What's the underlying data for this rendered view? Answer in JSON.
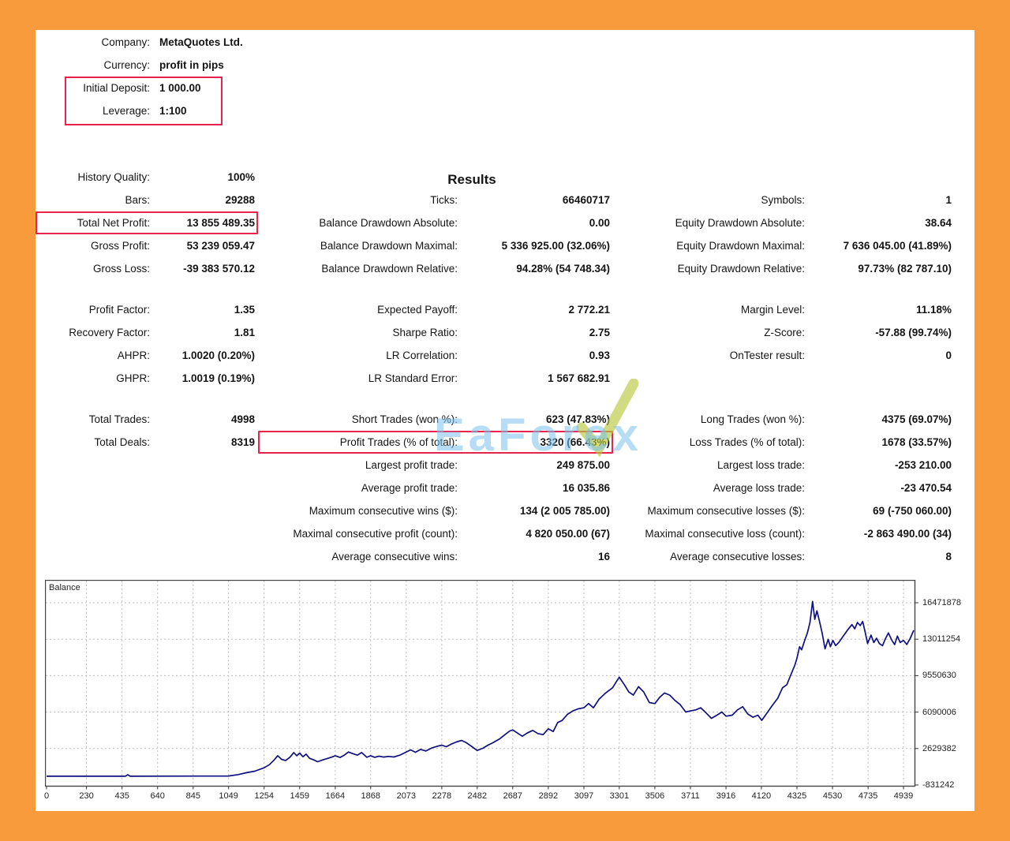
{
  "colors": {
    "frame_orange": "#F79B3D",
    "highlight_red": "#e8234e",
    "balance_line": "#10107e",
    "grid_gray": "#bdbdbd",
    "watermark_blue": "#7ac1ec"
  },
  "header": {
    "rows": [
      {
        "label": "Company:",
        "value": "MetaQuotes Ltd."
      },
      {
        "label": "Currency:",
        "value": "profit in pips"
      },
      {
        "label": "Initial Deposit:",
        "value": "1 000.00"
      },
      {
        "label": "Leverage:",
        "value": "1:100"
      }
    ]
  },
  "results": {
    "title": "Results",
    "sections": [
      {
        "rows": [
          [
            {
              "label": "History Quality:",
              "value": "100%"
            },
            null,
            null
          ],
          [
            {
              "label": "Bars:",
              "value": "29288"
            },
            {
              "label": "Ticks:",
              "value": "66460717"
            },
            {
              "label": "Symbols:",
              "value": "1"
            }
          ],
          [
            {
              "label": "Total Net Profit:",
              "value": "13 855 489.35",
              "boxed": true
            },
            {
              "label": "Balance Drawdown Absolute:",
              "value": "0.00"
            },
            {
              "label": "Equity Drawdown Absolute:",
              "value": "38.64"
            }
          ],
          [
            {
              "label": "Gross Profit:",
              "value": "53 239 059.47"
            },
            {
              "label": "Balance Drawdown Maximal:",
              "value": "5 336 925.00 (32.06%)"
            },
            {
              "label": "Equity Drawdown Maximal:",
              "value": "7 636 045.00 (41.89%)"
            }
          ],
          [
            {
              "label": "Gross Loss:",
              "value": "-39 383 570.12"
            },
            {
              "label": "Balance Drawdown Relative:",
              "value": "94.28% (54 748.34)"
            },
            {
              "label": "Equity Drawdown Relative:",
              "value": "97.73% (82 787.10)"
            }
          ]
        ]
      },
      {
        "rows": [
          [
            {
              "label": "Profit Factor:",
              "value": "1.35"
            },
            {
              "label": "Expected Payoff:",
              "value": "2 772.21"
            },
            {
              "label": "Margin Level:",
              "value": "11.18%"
            }
          ],
          [
            {
              "label": "Recovery Factor:",
              "value": "1.81"
            },
            {
              "label": "Sharpe Ratio:",
              "value": "2.75"
            },
            {
              "label": "Z-Score:",
              "value": "-57.88 (99.74%)"
            }
          ],
          [
            {
              "label": "AHPR:",
              "value": "1.0020 (0.20%)"
            },
            {
              "label": "LR Correlation:",
              "value": "0.93"
            },
            {
              "label": "OnTester result:",
              "value": "0"
            }
          ],
          [
            {
              "label": "GHPR:",
              "value": "1.0019 (0.19%)"
            },
            {
              "label": "LR Standard Error:",
              "value": "1 567 682.91"
            },
            null
          ]
        ]
      },
      {
        "rows": [
          [
            {
              "label": "Total Trades:",
              "value": "4998"
            },
            {
              "label": "Short Trades (won %):",
              "value": "623 (47.83%)"
            },
            {
              "label": "Long Trades (won %):",
              "value": "4375 (69.07%)"
            }
          ],
          [
            {
              "label": "Total Deals:",
              "value": "8319"
            },
            {
              "label": "Profit Trades (% of total):",
              "value": "3320 (66.43%)",
              "boxed": true
            },
            {
              "label": "Loss Trades (% of total):",
              "value": "1678 (33.57%)"
            }
          ],
          [
            null,
            {
              "label": "Largest profit trade:",
              "value": "249 875.00"
            },
            {
              "label": "Largest loss trade:",
              "value": "-253 210.00"
            }
          ],
          [
            null,
            {
              "label": "Average profit trade:",
              "value": "16 035.86"
            },
            {
              "label": "Average loss trade:",
              "value": "-23 470.54"
            }
          ],
          [
            null,
            {
              "label": "Maximum consecutive wins ($):",
              "value": "134 (2 005 785.00)"
            },
            {
              "label": "Maximum consecutive losses ($):",
              "value": "69 (-750 060.00)"
            }
          ],
          [
            null,
            {
              "label": "Maximal consecutive profit (count):",
              "value": "4 820 050.00 (67)"
            },
            {
              "label": "Maximal consecutive loss (count):",
              "value": "-2 863 490.00 (34)"
            }
          ],
          [
            null,
            {
              "label": "Average consecutive wins:",
              "value": "16"
            },
            {
              "label": "Average consecutive losses:",
              "value": "8"
            }
          ]
        ]
      }
    ]
  },
  "watermark": {
    "text": "EaForex"
  },
  "chart_data": {
    "type": "line",
    "title": "Balance",
    "legend_position": "top-left",
    "grid": true,
    "x_max": 4998,
    "x_ticks": [
      0,
      230,
      435,
      640,
      845,
      1049,
      1254,
      1459,
      1664,
      1868,
      2073,
      2278,
      2482,
      2687,
      2892,
      3097,
      3301,
      3506,
      3711,
      3916,
      4120,
      4325,
      4530,
      4735,
      4939
    ],
    "y_ticks": [
      16471878,
      13011254,
      9550630,
      6090006,
      2629382,
      -831242
    ],
    "series": [
      {
        "name": "Balance",
        "points": [
          [
            0,
            1000
          ],
          [
            455,
            1000
          ],
          [
            468,
            140000
          ],
          [
            482,
            1000
          ],
          [
            1049,
            25000
          ],
          [
            1105,
            160000
          ],
          [
            1150,
            330000
          ],
          [
            1200,
            480000
          ],
          [
            1254,
            800000
          ],
          [
            1285,
            1100000
          ],
          [
            1312,
            1550000
          ],
          [
            1332,
            1950000
          ],
          [
            1355,
            1600000
          ],
          [
            1378,
            1500000
          ],
          [
            1402,
            1800000
          ],
          [
            1425,
            2250000
          ],
          [
            1442,
            1950000
          ],
          [
            1459,
            2200000
          ],
          [
            1478,
            1850000
          ],
          [
            1496,
            2100000
          ],
          [
            1516,
            1700000
          ],
          [
            1540,
            1550000
          ],
          [
            1562,
            1380000
          ],
          [
            1592,
            1550000
          ],
          [
            1622,
            1700000
          ],
          [
            1650,
            1850000
          ],
          [
            1664,
            1950000
          ],
          [
            1692,
            1780000
          ],
          [
            1716,
            2000000
          ],
          [
            1740,
            2300000
          ],
          [
            1764,
            2150000
          ],
          [
            1792,
            2000000
          ],
          [
            1816,
            2250000
          ],
          [
            1846,
            1800000
          ],
          [
            1868,
            1950000
          ],
          [
            1892,
            1800000
          ],
          [
            1916,
            1900000
          ],
          [
            1942,
            1820000
          ],
          [
            1970,
            1880000
          ],
          [
            2002,
            1830000
          ],
          [
            2036,
            2000000
          ],
          [
            2073,
            2300000
          ],
          [
            2098,
            2500000
          ],
          [
            2126,
            2280000
          ],
          [
            2156,
            2550000
          ],
          [
            2186,
            2400000
          ],
          [
            2222,
            2700000
          ],
          [
            2252,
            2850000
          ],
          [
            2278,
            2950000
          ],
          [
            2304,
            2800000
          ],
          [
            2332,
            3050000
          ],
          [
            2362,
            3250000
          ],
          [
            2392,
            3400000
          ],
          [
            2422,
            3150000
          ],
          [
            2452,
            2800000
          ],
          [
            2482,
            2450000
          ],
          [
            2514,
            2650000
          ],
          [
            2544,
            2950000
          ],
          [
            2574,
            3200000
          ],
          [
            2612,
            3550000
          ],
          [
            2642,
            3950000
          ],
          [
            2670,
            4300000
          ],
          [
            2687,
            4400000
          ],
          [
            2714,
            4100000
          ],
          [
            2742,
            3800000
          ],
          [
            2770,
            4100000
          ],
          [
            2802,
            4350000
          ],
          [
            2832,
            4050000
          ],
          [
            2862,
            3950000
          ],
          [
            2892,
            4500000
          ],
          [
            2920,
            4250000
          ],
          [
            2946,
            5100000
          ],
          [
            2972,
            5300000
          ],
          [
            3004,
            5900000
          ],
          [
            3034,
            6200000
          ],
          [
            3064,
            6400000
          ],
          [
            3097,
            6500000
          ],
          [
            3124,
            6900000
          ],
          [
            3152,
            6500000
          ],
          [
            3184,
            7300000
          ],
          [
            3222,
            7900000
          ],
          [
            3262,
            8400000
          ],
          [
            3285,
            9000000
          ],
          [
            3301,
            9400000
          ],
          [
            3330,
            8700000
          ],
          [
            3356,
            8000000
          ],
          [
            3382,
            7700000
          ],
          [
            3412,
            8500000
          ],
          [
            3442,
            8000000
          ],
          [
            3474,
            7000000
          ],
          [
            3506,
            6900000
          ],
          [
            3534,
            7500000
          ],
          [
            3562,
            7900000
          ],
          [
            3592,
            7700000
          ],
          [
            3622,
            7200000
          ],
          [
            3652,
            6800000
          ],
          [
            3684,
            6100000
          ],
          [
            3711,
            6200000
          ],
          [
            3742,
            6300000
          ],
          [
            3770,
            6500000
          ],
          [
            3802,
            6000000
          ],
          [
            3832,
            5500000
          ],
          [
            3864,
            5800000
          ],
          [
            3892,
            6100000
          ],
          [
            3916,
            5700000
          ],
          [
            3952,
            5800000
          ],
          [
            3982,
            6300000
          ],
          [
            4012,
            6600000
          ],
          [
            4042,
            5900000
          ],
          [
            4072,
            5600000
          ],
          [
            4100,
            5800000
          ],
          [
            4122,
            5300000
          ],
          [
            4152,
            6000000
          ],
          [
            4182,
            6700000
          ],
          [
            4214,
            7400000
          ],
          [
            4242,
            8400000
          ],
          [
            4267,
            8700000
          ],
          [
            4294,
            9800000
          ],
          [
            4312,
            10500000
          ],
          [
            4325,
            11200000
          ],
          [
            4340,
            12300000
          ],
          [
            4352,
            12000000
          ],
          [
            4368,
            12800000
          ],
          [
            4385,
            13600000
          ],
          [
            4400,
            14600000
          ],
          [
            4415,
            16600000
          ],
          [
            4428,
            14900000
          ],
          [
            4440,
            15700000
          ],
          [
            4455,
            14700000
          ],
          [
            4470,
            13600000
          ],
          [
            4487,
            12100000
          ],
          [
            4505,
            13000000
          ],
          [
            4518,
            12300000
          ],
          [
            4532,
            12900000
          ],
          [
            4548,
            12400000
          ],
          [
            4566,
            12700000
          ],
          [
            4592,
            13300000
          ],
          [
            4618,
            13900000
          ],
          [
            4642,
            14400000
          ],
          [
            4658,
            14000000
          ],
          [
            4674,
            14600000
          ],
          [
            4690,
            14300000
          ],
          [
            4704,
            14700000
          ],
          [
            4718,
            13700000
          ],
          [
            4732,
            12600000
          ],
          [
            4752,
            13400000
          ],
          [
            4768,
            12700000
          ],
          [
            4784,
            13100000
          ],
          [
            4800,
            12600000
          ],
          [
            4818,
            12400000
          ],
          [
            4836,
            13100000
          ],
          [
            4852,
            13600000
          ],
          [
            4872,
            12900000
          ],
          [
            4888,
            12500000
          ],
          [
            4904,
            13300000
          ],
          [
            4920,
            12700000
          ],
          [
            4939,
            12900000
          ],
          [
            4958,
            12500000
          ],
          [
            4978,
            13100000
          ],
          [
            4998,
            13856489
          ]
        ]
      }
    ]
  }
}
